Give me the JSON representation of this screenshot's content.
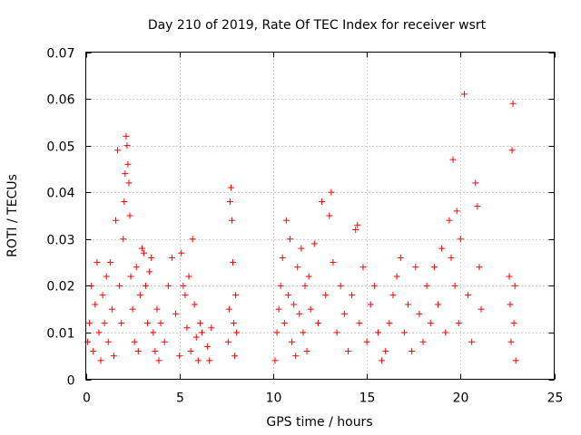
{
  "chart_data": {
    "type": "scatter",
    "title": "Day 210 of 2019, Rate Of TEC Index for receiver wsrt",
    "xlabel": "GPS time / hours",
    "ylabel": "ROTI / TECUs",
    "xlim": [
      0,
      25
    ],
    "ylim": [
      0,
      0.07
    ],
    "xticks": [
      0,
      5,
      10,
      15,
      20,
      25
    ],
    "xtick_labels": [
      "0",
      "5",
      "10",
      "15",
      "20",
      "25"
    ],
    "yticks": [
      0,
      0.01,
      0.02,
      0.03,
      0.04,
      0.05,
      0.06,
      0.07
    ],
    "ytick_labels": [
      "0",
      "0.01",
      "0.02",
      "0.03",
      "0.04",
      "0.05",
      "0.06",
      "0.07"
    ],
    "grid": true,
    "marker": "+",
    "color": "#ff0000",
    "series": [
      {
        "name": "ROTI",
        "points": [
          [
            0.1,
            0.008
          ],
          [
            0.2,
            0.012
          ],
          [
            0.3,
            0.02
          ],
          [
            0.4,
            0.006
          ],
          [
            0.5,
            0.016
          ],
          [
            0.6,
            0.025
          ],
          [
            0.7,
            0.01
          ],
          [
            0.8,
            0.004
          ],
          [
            0.9,
            0.018
          ],
          [
            1.0,
            0.012
          ],
          [
            1.1,
            0.022
          ],
          [
            1.2,
            0.008
          ],
          [
            1.3,
            0.025
          ],
          [
            1.4,
            0.015
          ],
          [
            1.5,
            0.005
          ],
          [
            1.6,
            0.034
          ],
          [
            1.7,
            0.049
          ],
          [
            1.8,
            0.02
          ],
          [
            1.9,
            0.012
          ],
          [
            2.0,
            0.03
          ],
          [
            2.05,
            0.038
          ],
          [
            2.1,
            0.044
          ],
          [
            2.15,
            0.052
          ],
          [
            2.2,
            0.05
          ],
          [
            2.25,
            0.046
          ],
          [
            2.3,
            0.042
          ],
          [
            2.35,
            0.035
          ],
          [
            2.4,
            0.022
          ],
          [
            2.5,
            0.015
          ],
          [
            2.6,
            0.008
          ],
          [
            2.7,
            0.024
          ],
          [
            2.8,
            0.006
          ],
          [
            2.9,
            0.018
          ],
          [
            3.0,
            0.028
          ],
          [
            3.1,
            0.027
          ],
          [
            3.2,
            0.02
          ],
          [
            3.3,
            0.012
          ],
          [
            3.4,
            0.023
          ],
          [
            3.5,
            0.026
          ],
          [
            3.6,
            0.01
          ],
          [
            3.7,
            0.006
          ],
          [
            3.8,
            0.015
          ],
          [
            3.9,
            0.004
          ],
          [
            4.0,
            0.012
          ],
          [
            4.2,
            0.008
          ],
          [
            4.4,
            0.02
          ],
          [
            4.6,
            0.026
          ],
          [
            4.8,
            0.014
          ],
          [
            5.0,
            0.005
          ],
          [
            5.1,
            0.027
          ],
          [
            5.2,
            0.02
          ],
          [
            5.3,
            0.018
          ],
          [
            5.4,
            0.011
          ],
          [
            5.5,
            0.022
          ],
          [
            5.6,
            0.006
          ],
          [
            5.7,
            0.03
          ],
          [
            5.8,
            0.016
          ],
          [
            5.9,
            0.009
          ],
          [
            6.0,
            0.004
          ],
          [
            6.1,
            0.012
          ],
          [
            6.2,
            0.01
          ],
          [
            6.5,
            0.007
          ],
          [
            6.6,
            0.004
          ],
          [
            6.7,
            0.011
          ],
          [
            7.6,
            0.008
          ],
          [
            7.65,
            0.015
          ],
          [
            7.7,
            0.038
          ],
          [
            7.75,
            0.041
          ],
          [
            7.8,
            0.034
          ],
          [
            7.85,
            0.025
          ],
          [
            7.9,
            0.012
          ],
          [
            7.95,
            0.005
          ],
          [
            8.0,
            0.018
          ],
          [
            8.05,
            0.01
          ],
          [
            10.1,
            0.004
          ],
          [
            10.2,
            0.01
          ],
          [
            10.3,
            0.015
          ],
          [
            10.4,
            0.02
          ],
          [
            10.5,
            0.026
          ],
          [
            10.6,
            0.012
          ],
          [
            10.7,
            0.034
          ],
          [
            10.8,
            0.018
          ],
          [
            10.9,
            0.03
          ],
          [
            11.0,
            0.008
          ],
          [
            11.1,
            0.016
          ],
          [
            11.2,
            0.005
          ],
          [
            11.3,
            0.024
          ],
          [
            11.4,
            0.014
          ],
          [
            11.5,
            0.028
          ],
          [
            11.6,
            0.01
          ],
          [
            11.7,
            0.02
          ],
          [
            11.8,
            0.006
          ],
          [
            11.9,
            0.022
          ],
          [
            12.0,
            0.015
          ],
          [
            12.2,
            0.029
          ],
          [
            12.4,
            0.012
          ],
          [
            12.6,
            0.038
          ],
          [
            12.8,
            0.018
          ],
          [
            13.0,
            0.035
          ],
          [
            13.1,
            0.04
          ],
          [
            13.2,
            0.025
          ],
          [
            13.4,
            0.01
          ],
          [
            13.6,
            0.02
          ],
          [
            13.8,
            0.014
          ],
          [
            14.0,
            0.006
          ],
          [
            14.2,
            0.018
          ],
          [
            14.4,
            0.032
          ],
          [
            14.5,
            0.033
          ],
          [
            14.6,
            0.012
          ],
          [
            14.8,
            0.024
          ],
          [
            15.0,
            0.008
          ],
          [
            15.2,
            0.016
          ],
          [
            15.4,
            0.02
          ],
          [
            15.6,
            0.01
          ],
          [
            15.8,
            0.004
          ],
          [
            16.0,
            0.006
          ],
          [
            16.2,
            0.012
          ],
          [
            16.4,
            0.018
          ],
          [
            16.6,
            0.022
          ],
          [
            16.8,
            0.026
          ],
          [
            17.0,
            0.01
          ],
          [
            17.2,
            0.016
          ],
          [
            17.4,
            0.006
          ],
          [
            17.6,
            0.024
          ],
          [
            17.8,
            0.014
          ],
          [
            18.0,
            0.008
          ],
          [
            18.2,
            0.02
          ],
          [
            18.4,
            0.012
          ],
          [
            18.6,
            0.024
          ],
          [
            18.8,
            0.016
          ],
          [
            19.0,
            0.028
          ],
          [
            19.2,
            0.01
          ],
          [
            19.4,
            0.034
          ],
          [
            19.5,
            0.026
          ],
          [
            19.6,
            0.047
          ],
          [
            19.7,
            0.02
          ],
          [
            19.8,
            0.036
          ],
          [
            19.9,
            0.012
          ],
          [
            20.0,
            0.03
          ],
          [
            20.2,
            0.061
          ],
          [
            20.4,
            0.018
          ],
          [
            20.6,
            0.008
          ],
          [
            20.8,
            0.042
          ],
          [
            20.9,
            0.037
          ],
          [
            21.0,
            0.024
          ],
          [
            21.1,
            0.015
          ],
          [
            22.6,
            0.022
          ],
          [
            22.65,
            0.016
          ],
          [
            22.7,
            0.008
          ],
          [
            22.75,
            0.049
          ],
          [
            22.8,
            0.059
          ],
          [
            22.85,
            0.012
          ],
          [
            22.9,
            0.02
          ],
          [
            22.95,
            0.004
          ]
        ]
      }
    ]
  }
}
